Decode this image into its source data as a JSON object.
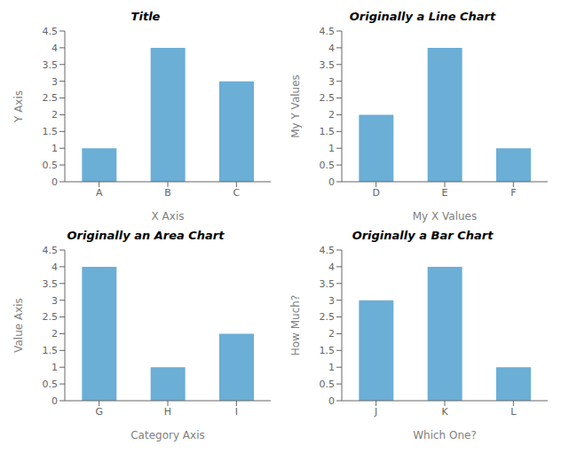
{
  "chart_data": [
    {
      "type": "bar",
      "title": "Title",
      "xlabel": "X Axis",
      "ylabel": "Y Axis",
      "categories": [
        "A",
        "B",
        "C"
      ],
      "values": [
        1,
        4,
        3
      ],
      "color": "#6BAED6",
      "ylim": [
        0,
        4.5
      ],
      "yticks": [
        0,
        0.5,
        1,
        1.5,
        2,
        2.5,
        3,
        3.5,
        4,
        4.5
      ],
      "grid": false
    },
    {
      "type": "bar",
      "title": "Originally a Line Chart",
      "xlabel": "My X Values",
      "ylabel": "My Y Values",
      "categories": [
        "D",
        "E",
        "F"
      ],
      "values": [
        2,
        4,
        1
      ],
      "color": "#6BAED6",
      "ylim": [
        0,
        4.5
      ],
      "yticks": [
        0,
        0.5,
        1,
        1.5,
        2,
        2.5,
        3,
        3.5,
        4,
        4.5
      ],
      "grid": false
    },
    {
      "type": "bar",
      "title": "Originally an Area Chart",
      "xlabel": "Category Axis",
      "ylabel": "Value Axis",
      "categories": [
        "G",
        "H",
        "I"
      ],
      "values": [
        4,
        1,
        2
      ],
      "color": "#6BAED6",
      "ylim": [
        0,
        4.5
      ],
      "yticks": [
        0,
        0.5,
        1,
        1.5,
        2,
        2.5,
        3,
        3.5,
        4,
        4.5
      ],
      "grid": false
    },
    {
      "type": "bar",
      "title": "Originally a Bar Chart",
      "xlabel": "Which One?",
      "ylabel": "How Much?",
      "categories": [
        "J",
        "K",
        "L"
      ],
      "values": [
        3,
        4,
        1
      ],
      "color": "#6BAED6",
      "ylim": [
        0,
        4.5
      ],
      "yticks": [
        0,
        0.5,
        1,
        1.5,
        2,
        2.5,
        3,
        3.5,
        4,
        4.5
      ],
      "grid": false
    }
  ]
}
